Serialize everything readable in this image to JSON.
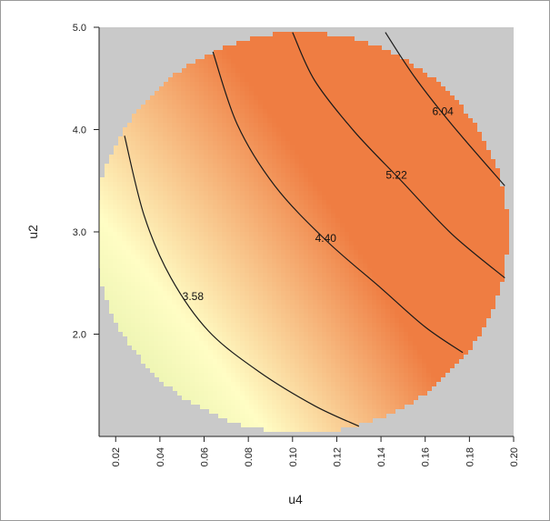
{
  "chart_data": {
    "type": "heatmap",
    "subtype": "filled-contour",
    "title": "",
    "xlabel": "u4",
    "ylabel": "u2",
    "xlim": [
      0.0125,
      0.2
    ],
    "ylim": [
      1.0,
      5.0
    ],
    "x_ticks": [
      "0.02",
      "0.04",
      "0.06",
      "0.08",
      "0.10",
      "0.12",
      "0.14",
      "0.16",
      "0.18",
      "0.20"
    ],
    "x_tick_values": [
      0.02,
      0.04,
      0.06,
      0.08,
      0.1,
      0.12,
      0.14,
      0.16,
      0.18,
      0.2
    ],
    "y_ticks": [
      "2.0",
      "3.0",
      "4.0",
      "5.0"
    ],
    "y_tick_values": [
      2.0,
      3.0,
      4.0,
      5.0
    ],
    "background_color": "#c9c9c9",
    "colormap": {
      "low": "#c6e38c",
      "mid": "#fffdc4",
      "high": "#ef7d42",
      "range": [
        2.9,
        6.4
      ]
    },
    "region": {
      "shape": "circle",
      "center": [
        0.104,
        2.99
      ],
      "radius_x": 0.0935,
      "radius_y": 1.96
    },
    "contours": [
      {
        "label": "3.58",
        "level": 3.58,
        "label_at": [
          0.055,
          2.35
        ],
        "points": [
          [
            0.024,
            3.94
          ],
          [
            0.033,
            3.15
          ],
          [
            0.045,
            2.55
          ],
          [
            0.062,
            2.03
          ],
          [
            0.085,
            1.63
          ],
          [
            0.11,
            1.3
          ],
          [
            0.13,
            1.1
          ]
        ]
      },
      {
        "label": "4.40",
        "level": 4.4,
        "label_at": [
          0.115,
          2.92
        ],
        "points": [
          [
            0.064,
            4.76
          ],
          [
            0.075,
            4.05
          ],
          [
            0.092,
            3.45
          ],
          [
            0.115,
            2.92
          ],
          [
            0.14,
            2.45
          ],
          [
            0.16,
            2.07
          ],
          [
            0.177,
            1.82
          ]
        ]
      },
      {
        "label": "5.22",
        "level": 5.22,
        "label_at": [
          0.147,
          3.54
        ],
        "points": [
          [
            0.1,
            4.95
          ],
          [
            0.11,
            4.48
          ],
          [
            0.128,
            3.98
          ],
          [
            0.15,
            3.48
          ],
          [
            0.172,
            2.98
          ],
          [
            0.196,
            2.55
          ]
        ]
      },
      {
        "label": "6.04",
        "level": 6.04,
        "label_at": [
          0.168,
          4.16
        ],
        "points": [
          [
            0.142,
            4.95
          ],
          [
            0.155,
            4.52
          ],
          [
            0.172,
            4.05
          ],
          [
            0.196,
            3.45
          ]
        ]
      }
    ]
  }
}
